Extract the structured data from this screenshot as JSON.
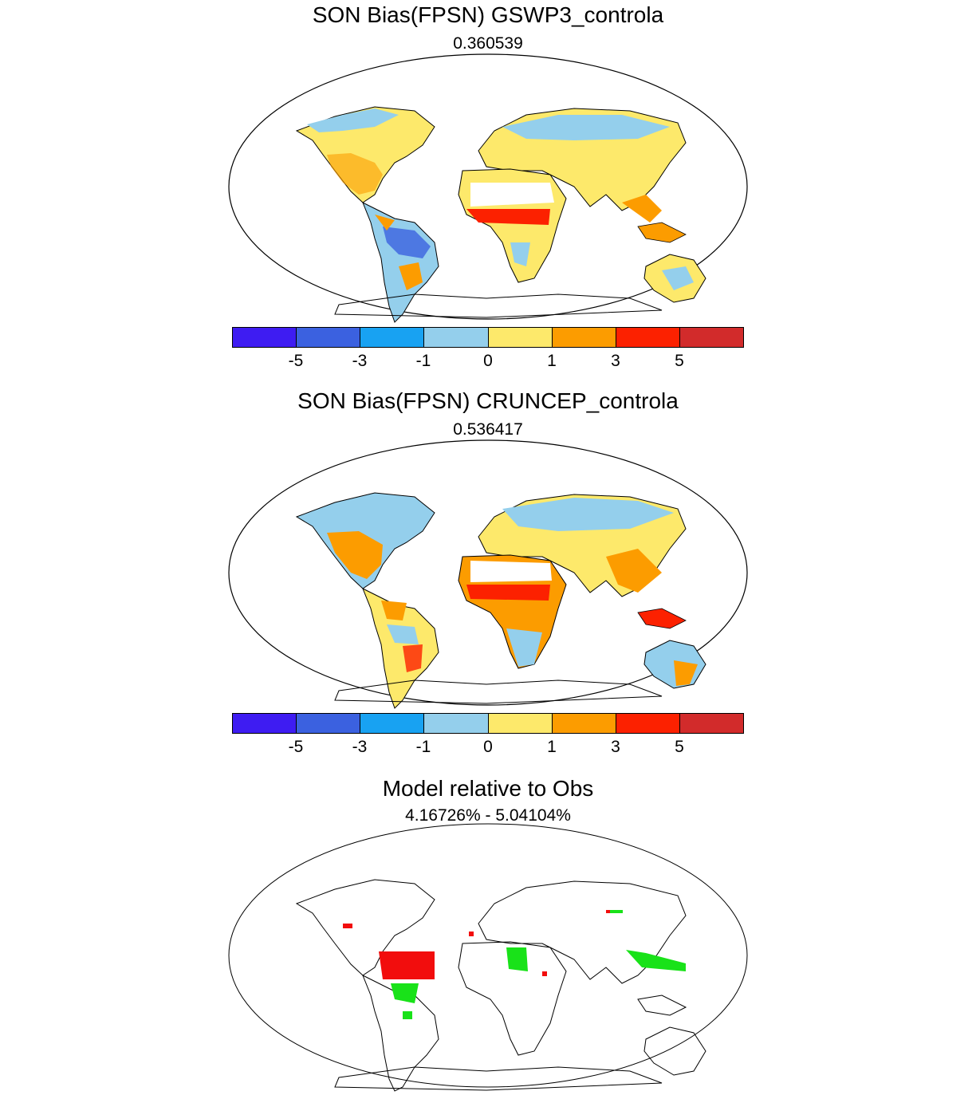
{
  "panels": [
    {
      "title": "SON Bias(FPSN) GSWP3_controla",
      "subtitle": "0.360539"
    },
    {
      "title": "SON Bias(FPSN) CRUNCEP_controla",
      "subtitle": "0.536417"
    },
    {
      "title": "Model relative to Obs",
      "subtitle": "4.16726% - 5.04104%"
    }
  ],
  "colorbar": {
    "colors": [
      "#3e1cf2",
      "#3b61e0",
      "#18a2f2",
      "#94cfec",
      "#fde96b",
      "#fc9c00",
      "#fc2100",
      "#d22b2b"
    ],
    "labels": [
      "-5",
      "-3",
      "-1",
      "0",
      "1",
      "3",
      "5"
    ]
  },
  "comparison_colors": {
    "better": "#19e219",
    "worse": "#f20d0d"
  }
}
